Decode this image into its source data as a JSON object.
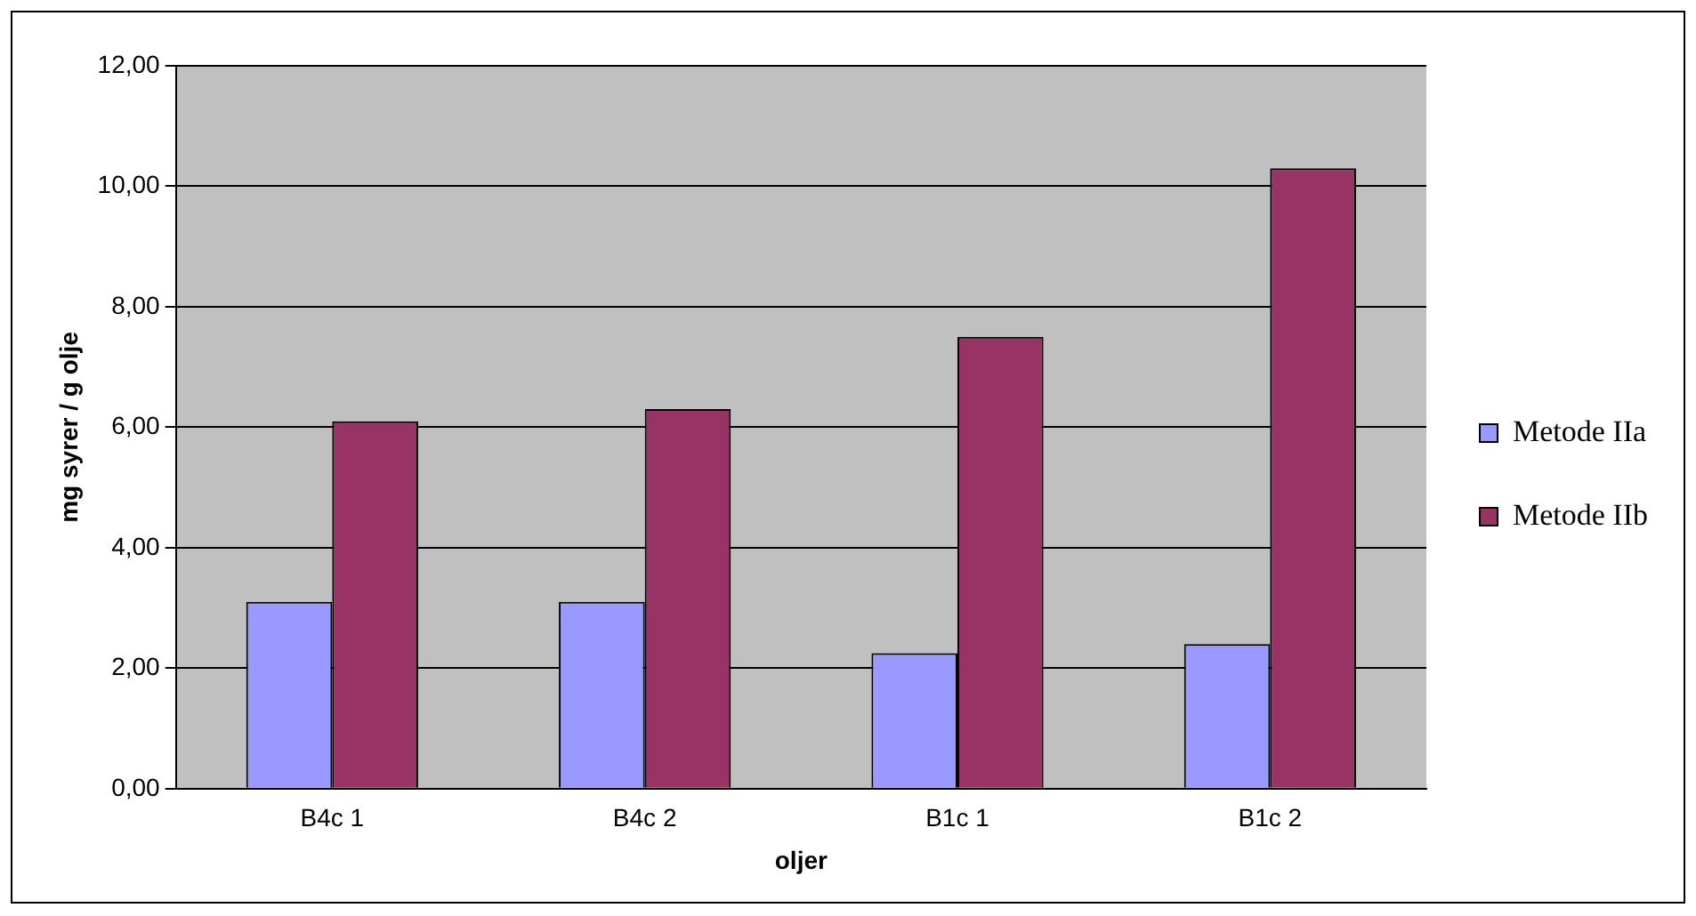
{
  "chart_data": {
    "type": "bar",
    "xlabel": "oljer",
    "ylabel": "mg syrer / g olje",
    "categories": [
      "B4c 1",
      "B4c 2",
      "B1c 1",
      "B1c 2"
    ],
    "series": [
      {
        "name": "Metode IIa",
        "color": "#9999ff",
        "values": [
          3.1,
          3.1,
          2.25,
          2.4
        ]
      },
      {
        "name": "Metode IIb",
        "color": "#993366",
        "values": [
          6.1,
          6.3,
          7.5,
          10.3
        ]
      }
    ],
    "ylim": [
      0,
      12
    ],
    "yticks": [
      {
        "value": 0,
        "label": "0,00"
      },
      {
        "value": 2,
        "label": "2,00"
      },
      {
        "value": 4,
        "label": "4,00"
      },
      {
        "value": 6,
        "label": "6,00"
      },
      {
        "value": 8,
        "label": "8,00"
      },
      {
        "value": 10,
        "label": "10,00"
      },
      {
        "value": 12,
        "label": "12,00"
      }
    ],
    "grid": "y",
    "legend": "right"
  }
}
